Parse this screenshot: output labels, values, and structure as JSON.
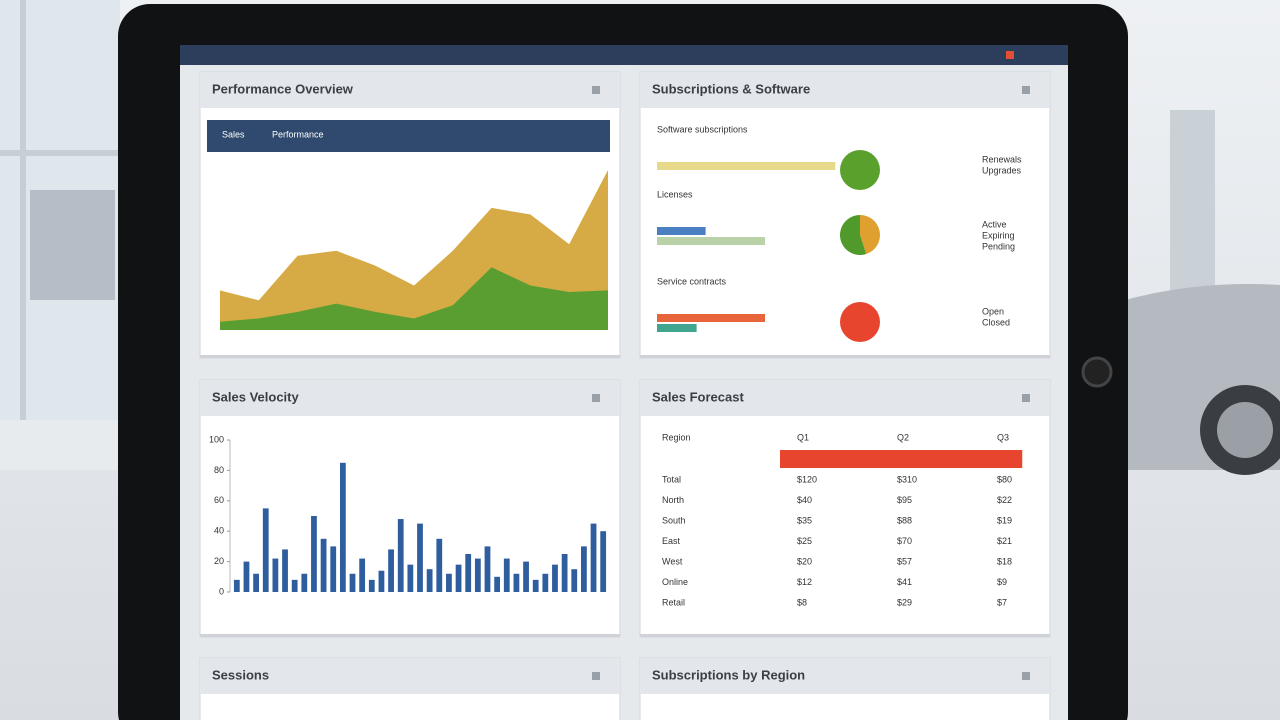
{
  "panels": [
    {
      "title": "Performance Overview",
      "legend": [
        "Sales",
        "Performance"
      ],
      "chart": {
        "type": "area",
        "x": [
          0,
          1,
          2,
          3,
          4,
          5,
          6,
          7,
          8,
          9,
          10
        ],
        "xlim": [
          0,
          10
        ],
        "ylim": [
          0,
          100
        ],
        "series": [
          {
            "color": "#d6ab45",
            "values": [
              24,
              18,
              45,
              48,
              39,
              27,
              48,
              74,
              70,
              52,
              97
            ]
          },
          {
            "color": "#5a9e31",
            "values": [
              5,
              7,
              11,
              16,
              11,
              7,
              15,
              38,
              27,
              23,
              24
            ]
          }
        ]
      }
    },
    {
      "title": "Subscriptions & Software",
      "rows": [
        {
          "label": "Software subscriptions",
          "bars": [
            {
              "value": 99,
              "color": "#e6d98a"
            }
          ],
          "pie": [
            100
          ],
          "pie_colors": [
            "#5aa02c"
          ],
          "notes": [
            "Renewals",
            "Upgrades"
          ]
        },
        {
          "label": "Licenses",
          "bars": [
            {
              "value": 27,
              "color": "#4a7fc1"
            },
            {
              "value": 60,
              "color": "#b9d2a8"
            }
          ],
          "pie": [
            45,
            55
          ],
          "pie_colors": [
            "#e0a030",
            "#4f9a2b"
          ],
          "notes": [
            "Active",
            "Expiring",
            "Pending"
          ]
        },
        {
          "label": "Service contracts",
          "bars": [
            {
              "value": 60,
              "color": "#e8643a"
            },
            {
              "value": 22,
              "color": "#3fa58f"
            }
          ],
          "pie": [
            100
          ],
          "pie_colors": [
            "#e8452f"
          ],
          "notes": [
            "Open",
            "Closed"
          ]
        }
      ]
    },
    {
      "title": "Sales Velocity",
      "chart": {
        "type": "bar",
        "color": "#2f5e9e",
        "ylim": [
          0,
          100
        ],
        "yticks": [
          0,
          20,
          40,
          60,
          80,
          100
        ],
        "values": [
          8,
          20,
          12,
          55,
          22,
          28,
          8,
          12,
          50,
          35,
          30,
          85,
          12,
          22,
          8,
          14,
          28,
          48,
          18,
          45,
          15,
          35,
          12,
          18,
          25,
          22,
          30,
          10,
          22,
          12,
          20,
          8,
          12,
          18,
          25,
          15,
          30,
          45,
          40
        ]
      }
    },
    {
      "title": "Sales Forecast",
      "table": {
        "header": [
          "Region",
          "Q1",
          "Q2",
          "Q3"
        ],
        "bar": 95,
        "bar_max": 100,
        "bar_color": "#e8452f",
        "rows": [
          [
            "Total",
            "$120",
            "$310",
            "$80"
          ],
          [
            "North",
            "$40",
            "$95",
            "$22"
          ],
          [
            "South",
            "$35",
            "$88",
            "$19"
          ],
          [
            "East",
            "$25",
            "$70",
            "$21"
          ],
          [
            "West",
            "$20",
            "$57",
            "$18"
          ],
          [
            "Online",
            "$12",
            "$41",
            "$9"
          ],
          [
            "Retail",
            "$8",
            "$29",
            "$7"
          ]
        ]
      }
    },
    {
      "title": "Sessions"
    },
    {
      "title": "Subscriptions by Region"
    }
  ]
}
